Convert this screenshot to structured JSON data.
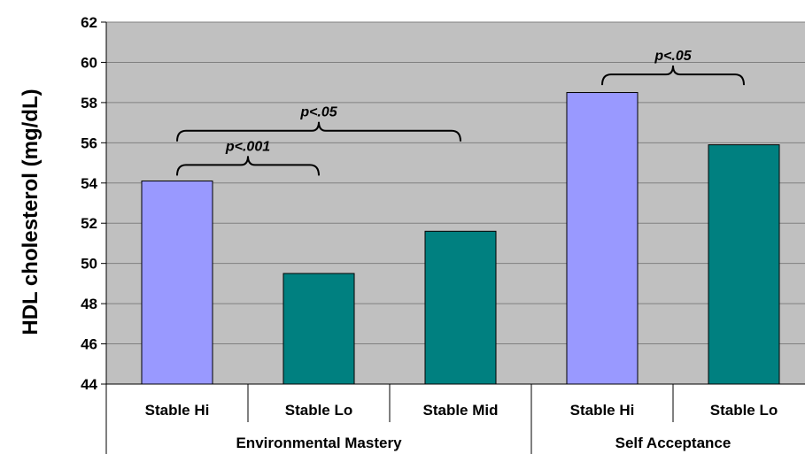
{
  "chart_data": {
    "type": "bar",
    "ylabel": "HDL cholesterol (mg/dL)",
    "ylim": [
      44,
      62
    ],
    "yticks": [
      44,
      46,
      48,
      50,
      52,
      54,
      56,
      58,
      60,
      62
    ],
    "grid": true,
    "categories": [
      {
        "label": "Stable Hi",
        "group": "Environmental Mastery",
        "value": 54.1,
        "color": "#9999ff"
      },
      {
        "label": "Stable Lo",
        "group": "Environmental Mastery",
        "value": 49.5,
        "color": "#008080"
      },
      {
        "label": "Stable Mid",
        "group": "Environmental Mastery",
        "value": 51.6,
        "color": "#008080"
      },
      {
        "label": "Stable Hi",
        "group": "Self Acceptance",
        "value": 58.5,
        "color": "#9999ff"
      },
      {
        "label": "Stable Lo",
        "group": "Self Acceptance",
        "value": 55.9,
        "color": "#008080"
      }
    ],
    "groups": [
      {
        "name": "Environmental Mastery",
        "start": 0,
        "end": 2
      },
      {
        "name": "Self Acceptance",
        "start": 3,
        "end": 4
      }
    ],
    "annotations": [
      {
        "text": "p<.001",
        "from": 0,
        "to": 1,
        "level": 54.9
      },
      {
        "text": "p<.05",
        "from": 0,
        "to": 2,
        "level": 56.6
      },
      {
        "text": "p<.05",
        "from": 3,
        "to": 4,
        "level": 59.4
      }
    ],
    "plot_background": "#c0c0c0",
    "grid_color": "#808080"
  }
}
